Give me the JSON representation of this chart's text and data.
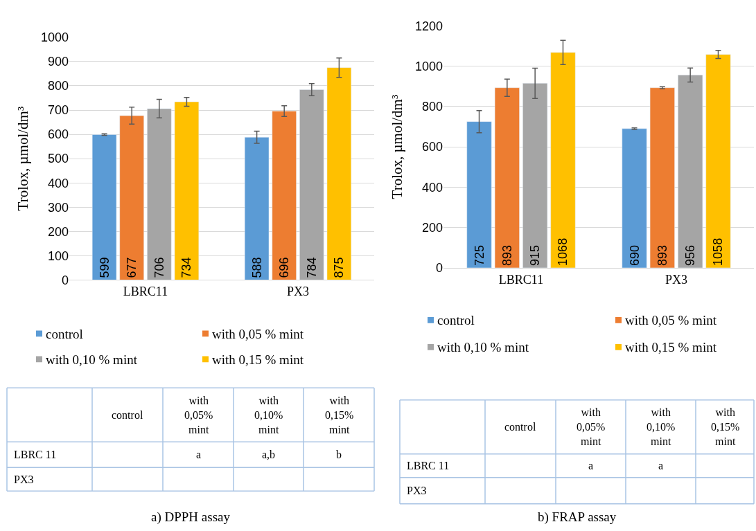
{
  "chart_data": [
    {
      "type": "bar",
      "ylabel": "Trolox, µmol/dm³",
      "categories": [
        "LBRC11",
        "PX3"
      ],
      "ylim": [
        0,
        1000
      ],
      "yticks": [
        0,
        100,
        200,
        300,
        400,
        500,
        600,
        700,
        800,
        900,
        1000
      ],
      "grid": "y",
      "legend": "bottom",
      "data_labels": true,
      "series": [
        {
          "name": "control",
          "color": "#5b9bd5",
          "values": [
            599,
            588
          ],
          "errors": [
            3,
            25
          ]
        },
        {
          "name": "with 0,05 % mint",
          "color": "#ed7d31",
          "values": [
            677,
            696
          ],
          "errors": [
            35,
            22
          ]
        },
        {
          "name": "with 0,10 % mint",
          "color": "#a5a5a5",
          "values": [
            706,
            784
          ],
          "errors": [
            38,
            25
          ]
        },
        {
          "name": "with 0,15 % mint",
          "color": "#ffc000",
          "values": [
            734,
            875
          ],
          "errors": [
            18,
            40
          ]
        }
      ]
    },
    {
      "type": "bar",
      "ylabel": "Trolox, µmol/dm³",
      "categories": [
        "LBRC11",
        "PX3"
      ],
      "ylim": [
        0,
        1200
      ],
      "yticks": [
        0,
        200,
        400,
        600,
        800,
        1000,
        1200
      ],
      "grid": "y",
      "legend": "bottom",
      "data_labels": true,
      "series": [
        {
          "name": "control",
          "color": "#5b9bd5",
          "values": [
            725,
            690
          ],
          "errors": [
            55,
            4
          ]
        },
        {
          "name": "with 0,05 % mint",
          "color": "#ed7d31",
          "values": [
            893,
            893
          ],
          "errors": [
            43,
            5
          ]
        },
        {
          "name": "with 0,10 % mint",
          "color": "#a5a5a5",
          "values": [
            915,
            956
          ],
          "errors": [
            75,
            35
          ]
        },
        {
          "name": "with 0,15 % mint",
          "color": "#ffc000",
          "values": [
            1068,
            1058
          ],
          "errors": [
            60,
            20
          ]
        }
      ]
    },
    {
      "type": "other",
      "categories": [
        "control",
        "with 0,05% mint",
        "with 0,10% mint",
        "with 0,15% mint"
      ],
      "y_categories": [
        "LBRC 11",
        "PX3"
      ],
      "cell_labels": [
        [
          null,
          "a",
          "a,b",
          "b"
        ],
        [
          null,
          null,
          null,
          null
        ]
      ],
      "annotations": [
        "a) DPPH assay"
      ]
    },
    {
      "type": "other",
      "categories": [
        "control",
        "with 0,05% mint",
        "with 0,10% mint",
        "with 0,15% mint"
      ],
      "y_categories": [
        "LBRC 11",
        "PX3"
      ],
      "cell_labels": [
        [
          null,
          "a",
          "a",
          null
        ],
        [
          null,
          null,
          null,
          null
        ]
      ],
      "annotations": [
        "b) FRAP assay"
      ]
    }
  ]
}
